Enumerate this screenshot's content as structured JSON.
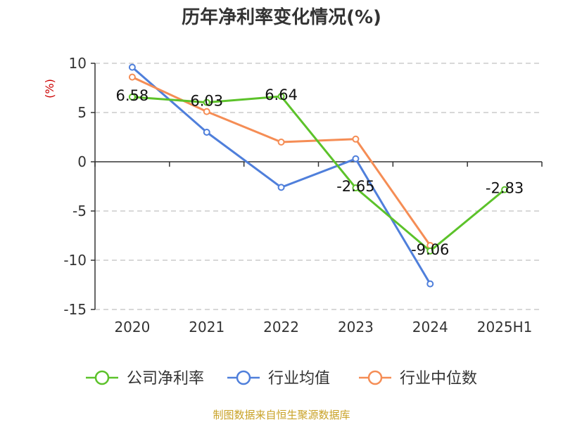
{
  "chart_data": {
    "type": "line",
    "title": "历年净利率变化情况(%)",
    "ylabel": "(%)",
    "xlabel": "",
    "categories": [
      "2020",
      "2021",
      "2022",
      "2023",
      "2024",
      "2025H1"
    ],
    "yticks": [
      10,
      5,
      0,
      -5,
      -10,
      -15
    ],
    "ylim": [
      -15,
      10
    ],
    "grid": "horizontal-dashed",
    "legend_position": "bottom",
    "series": [
      {
        "name": "公司净利率",
        "color": "#5cc22a",
        "values": [
          6.58,
          6.03,
          6.64,
          -2.65,
          -9.06,
          -2.83
        ],
        "labels": [
          "6.58",
          "6.03",
          "6.64",
          "-2.65",
          "-9.06",
          "-2.83"
        ]
      },
      {
        "name": "行业均值",
        "color": "#4f7fdb",
        "values": [
          9.6,
          3.0,
          -2.6,
          0.3,
          -12.4,
          null
        ]
      },
      {
        "name": "行业中位数",
        "color": "#f58d55",
        "values": [
          8.6,
          5.1,
          2.0,
          2.3,
          -8.5,
          null
        ]
      }
    ]
  },
  "colors": {
    "ylabel": "#cc0000",
    "source": "#c9a227",
    "axis": "#333333",
    "grid": "#cccccc"
  },
  "footer": {
    "source": "制图数据来自恒生聚源数据库"
  }
}
